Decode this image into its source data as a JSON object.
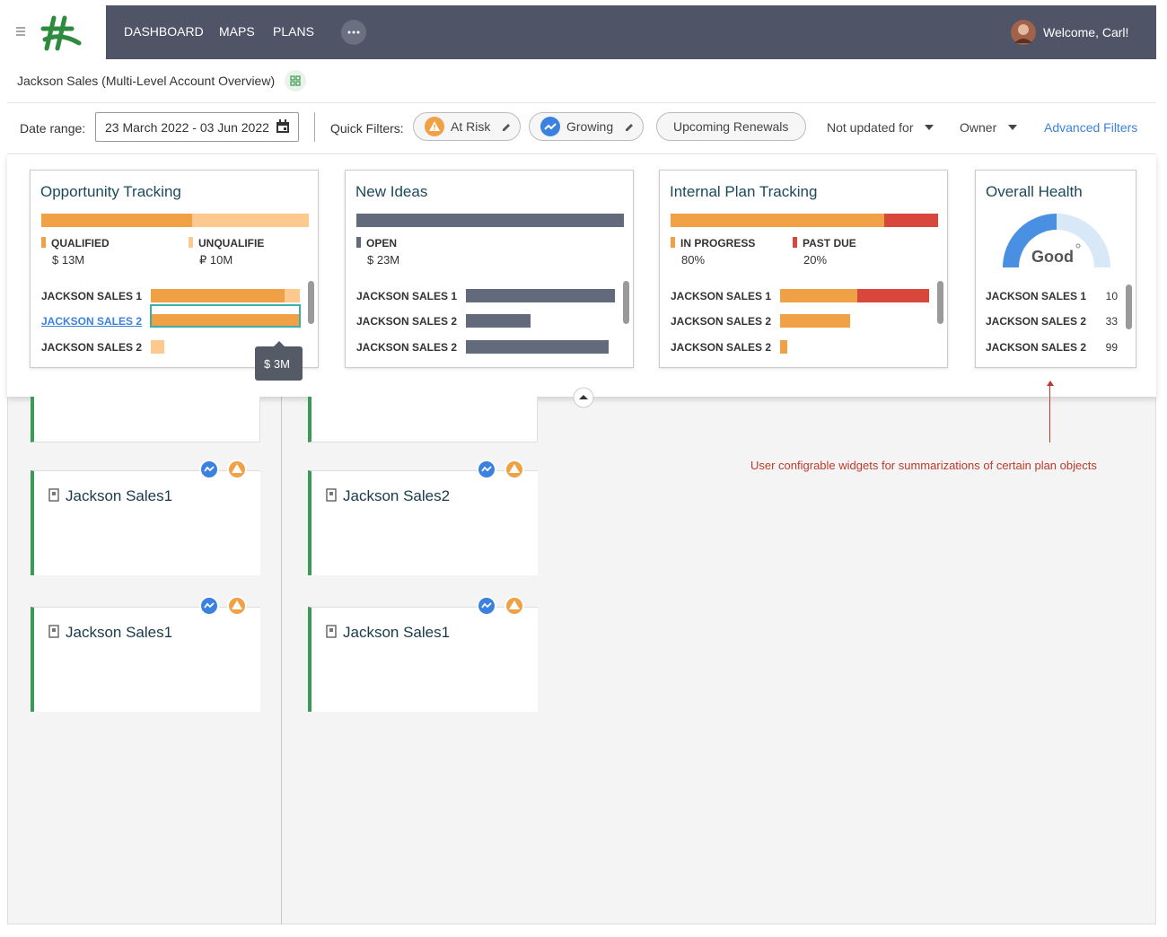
{
  "nav": {
    "items": [
      "DASHBOARD",
      "MAPS",
      "PLANS"
    ],
    "welcome": "Welcome, Carl!"
  },
  "header": {
    "title": "Jackson Sales (Multi-Level Account Overview)"
  },
  "filters": {
    "date_label": "Date range:",
    "date_value": "23 March 2022 - 03 Jun 2022",
    "quick_label": "Quick Filters:",
    "chips": [
      "At Risk",
      "Growing",
      "Upcoming Renewals"
    ],
    "dropdowns": [
      "Not updated for",
      "Owner"
    ],
    "advanced": "Advanced Filters"
  },
  "widgets": [
    {
      "title": "Opportunity Tracking",
      "rows": [
        "JACKSON SALES 1",
        "JACKSON SALES 2",
        "JACKSON SALES 2"
      ],
      "xlim": [
        0,
        10
      ],
      "series": [
        {
          "name": "QUALIFIED",
          "color": "#f0a045",
          "total": 13,
          "total_label": "$ 13M",
          "values": [
            9,
            10,
            0
          ]
        },
        {
          "name": "UNQUALIFIE",
          "color": "#fdc98e",
          "total": 10,
          "total_label": "₽ 10M",
          "values": [
            1,
            0,
            0.9
          ]
        }
      ],
      "tooltip": "$ 3M"
    },
    {
      "title": "New Ideas",
      "rows": [
        "JACKSON SALES 1",
        "JACKSON SALES 2",
        "JACKSON SALES 2"
      ],
      "xlim": [
        0,
        23
      ],
      "series": [
        {
          "name": "OPEN",
          "color": "#636a7c",
          "total": 23,
          "total_label": "$ 23M",
          "values": [
            23,
            10,
            22
          ]
        }
      ]
    },
    {
      "title": "Internal Plan Tracking",
      "rows": [
        "JACKSON SALES 1",
        "JACKSON SALES 2",
        "JACKSON SALES 2"
      ],
      "xlim": [
        0,
        100
      ],
      "series": [
        {
          "name": "IN PROGRESS",
          "color": "#f0a045",
          "total": 80,
          "total_label": "80%",
          "values": [
            52,
            47,
            5
          ]
        },
        {
          "name": "PAST DUE",
          "color": "#d9463b",
          "total": 20,
          "total_label": "20%",
          "values": [
            48,
            0,
            0
          ]
        }
      ]
    },
    {
      "title": "Overall Health",
      "gauge": {
        "value": 50,
        "label": "Good",
        "color": "#4a90e2",
        "track": "#d8e8f7"
      },
      "rows": [
        "JACKSON SALES 1",
        "JACKSON SALES 2",
        "JACKSON SALES 2"
      ],
      "values": [
        10,
        33,
        99
      ]
    }
  ],
  "annotation": "User configrable widgets for summarizations of certain plan objects",
  "cards": [
    "Jackson Sales1",
    "Jackson Sales2",
    "Jackson Sales1",
    "Jackson Sales1"
  ]
}
